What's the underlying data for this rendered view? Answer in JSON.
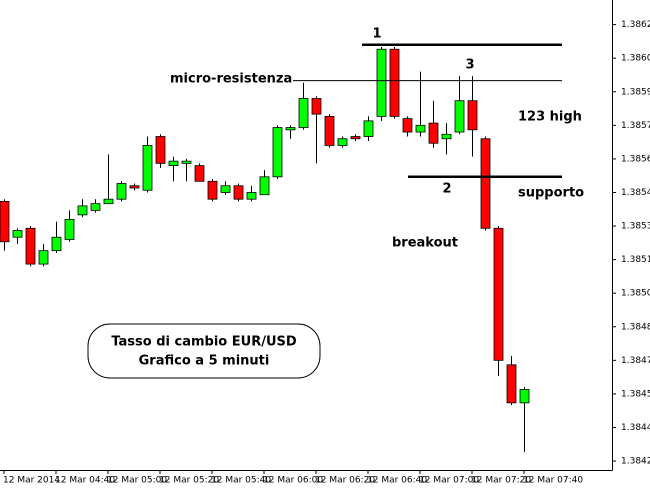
{
  "chart_data": {
    "type": "candlestick",
    "categories": [
      "12 Mar 2014",
      null,
      null,
      null,
      "12 Mar 04:40",
      null,
      null,
      null,
      "12 Mar 05:00",
      null,
      null,
      null,
      "12 Mar 05:20",
      null,
      null,
      null,
      "12 Mar 05:40",
      null,
      null,
      null,
      "12 Mar 06:00",
      null,
      null,
      null,
      "12 Mar 06:20",
      null,
      null,
      null,
      "12 Mar 06:40",
      null,
      null,
      null,
      "12 Mar 07:00",
      null,
      null,
      null,
      "12 Mar 07:20",
      null,
      null,
      null,
      "12 Mar 07:40"
    ],
    "open": [
      1.38541,
      1.38525,
      1.38529,
      1.38513,
      1.38519,
      1.38524,
      1.38535,
      1.38537,
      1.3854,
      1.38542,
      1.38548,
      1.38546,
      1.3857,
      1.38557,
      1.38558,
      1.38557,
      1.3855,
      1.38545,
      1.38548,
      1.38542,
      1.38544,
      1.38552,
      1.38573,
      1.38574,
      1.38587,
      1.38579,
      1.38566,
      1.3857,
      1.3857,
      1.38579,
      1.38609,
      1.38578,
      1.38572,
      1.38576,
      1.38569,
      1.38572,
      1.38586,
      1.38569,
      1.38529,
      1.38468,
      1.38451
    ],
    "high": [
      1.38542,
      1.38529,
      1.3853,
      1.38522,
      1.38532,
      1.38537,
      1.38542,
      1.38542,
      1.38562,
      1.3855,
      1.38549,
      1.3857,
      1.38571,
      1.38561,
      1.3856,
      1.38558,
      1.38551,
      1.3855,
      1.38549,
      1.38548,
      1.38555,
      1.38575,
      1.38575,
      1.38594,
      1.38588,
      1.3858,
      1.3857,
      1.38571,
      1.38579,
      1.3861,
      1.3861,
      1.38579,
      1.38599,
      1.38586,
      1.38576,
      1.38597,
      1.38597,
      1.3857,
      1.3853,
      1.38472,
      1.38458
    ],
    "low": [
      1.38519,
      1.38522,
      1.38512,
      1.38512,
      1.38518,
      1.38523,
      1.38534,
      1.38536,
      1.3854,
      1.38541,
      1.38546,
      1.38545,
      1.38556,
      1.3855,
      1.3855,
      1.3855,
      1.38541,
      1.38544,
      1.38541,
      1.38541,
      1.38544,
      1.38551,
      1.38569,
      1.38573,
      1.38558,
      1.38565,
      1.38565,
      1.38568,
      1.38568,
      1.38577,
      1.38578,
      1.3857,
      1.3857,
      1.38565,
      1.38562,
      1.38571,
      1.38561,
      1.38528,
      1.38463,
      1.3845,
      1.38429
    ],
    "close": [
      1.38523,
      1.38528,
      1.38513,
      1.38519,
      1.38525,
      1.38533,
      1.38539,
      1.3854,
      1.38542,
      1.38549,
      1.38547,
      1.38566,
      1.38558,
      1.38559,
      1.38559,
      1.3855,
      1.38542,
      1.38548,
      1.38542,
      1.38545,
      1.38552,
      1.38574,
      1.38574,
      1.38587,
      1.3858,
      1.38566,
      1.38569,
      1.38569,
      1.38577,
      1.38609,
      1.38579,
      1.38572,
      1.38575,
      1.38567,
      1.38571,
      1.38586,
      1.38573,
      1.38529,
      1.3847,
      1.38451,
      1.38457
    ],
    "up_color": "#00ff00",
    "down_color": "#ff0000",
    "ylim": [
      1.38421,
      1.38631
    ],
    "yticks": [
      {
        "value": 1.3862,
        "label": "1.38620"
      },
      1.38605,
      {
        "value": 1.3859,
        "label": "1.38590"
      },
      1.38575,
      {
        "value": 1.3856,
        "label": "1.38560"
      },
      1.38545,
      {
        "value": 1.3853,
        "label": "1.38530"
      },
      1.38515,
      {
        "value": 1.385,
        "label": "1.38500"
      },
      1.38485,
      {
        "value": 1.3847,
        "label": "1.38470"
      },
      1.38455,
      {
        "value": 1.3844,
        "label": "1.38440"
      },
      1.38425
    ],
    "levels": [
      1.38611,
      1.38595,
      1.38552
    ],
    "annotations": [
      "1",
      "2",
      "3",
      "micro-resistenza",
      "123 high",
      "supporto",
      "breakout"
    ],
    "info_box": [
      "Tasso di cambio EUR/USD",
      "Grafico a 5 minuti"
    ]
  }
}
